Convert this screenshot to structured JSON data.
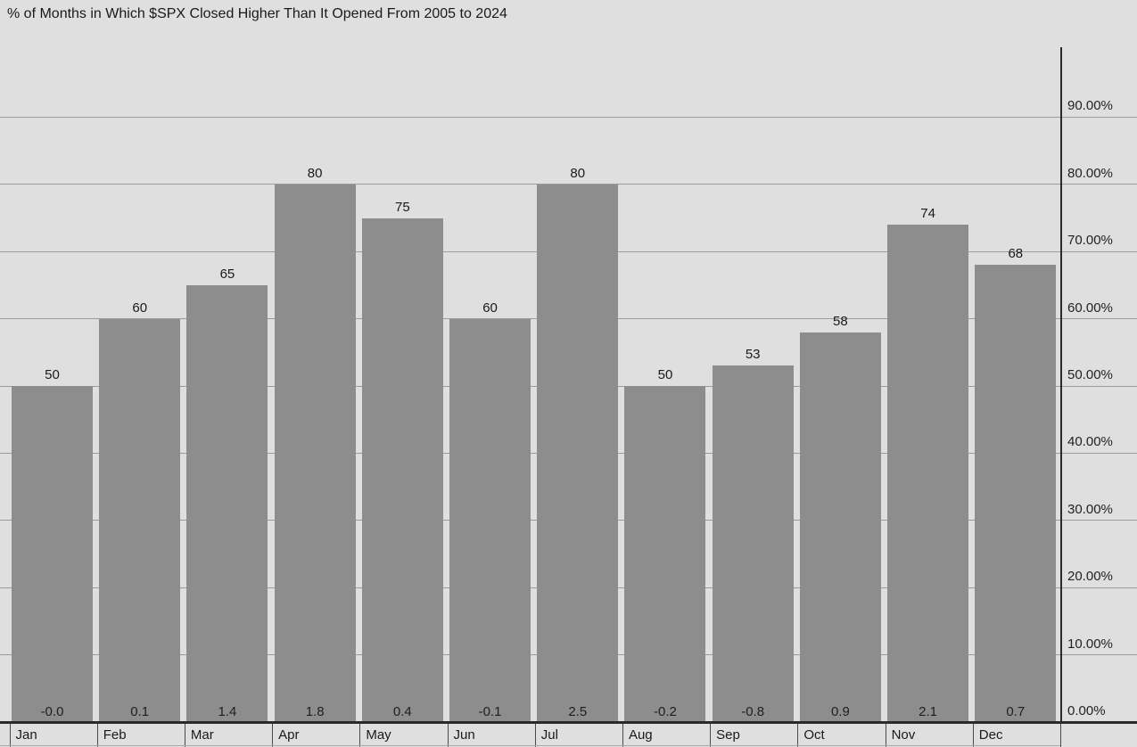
{
  "chart_data": {
    "type": "bar",
    "title": "% of Months in Which $SPX Closed Higher Than It Opened From 2005 to 2024",
    "categories": [
      "Jan",
      "Feb",
      "Mar",
      "Apr",
      "May",
      "Jun",
      "Jul",
      "Aug",
      "Sep",
      "Oct",
      "Nov",
      "Dec"
    ],
    "values": [
      50,
      60,
      65,
      80,
      75,
      60,
      80,
      50,
      53,
      58,
      74,
      68
    ],
    "bar_top_labels": [
      "50",
      "60",
      "65",
      "80",
      "75",
      "60",
      "80",
      "50",
      "53",
      "58",
      "74",
      "68"
    ],
    "bar_base_labels": [
      "-0.0",
      "0.1",
      "1.4",
      "1.8",
      "0.4",
      "-0.1",
      "2.5",
      "-0.2",
      "-0.8",
      "0.9",
      "2.1",
      "0.7"
    ],
    "xlabel": "",
    "ylabel": "",
    "y_axis": {
      "side": "right",
      "min": 0,
      "max": 100,
      "tick_step": 10,
      "tick_labels": [
        "0.00%",
        "10.00%",
        "20.00%",
        "30.00%",
        "40.00%",
        "50.00%",
        "60.00%",
        "70.00%",
        "80.00%",
        "90.00%"
      ],
      "gridlines": true
    },
    "legend": "none",
    "colors": {
      "bar": "#8d8d8d",
      "background": "#dfdfdf",
      "gridline": "#9b9b9b",
      "axis": "#2a2a2a",
      "text": "#1a1a1a",
      "month_divider": "#4a4a4a"
    }
  }
}
